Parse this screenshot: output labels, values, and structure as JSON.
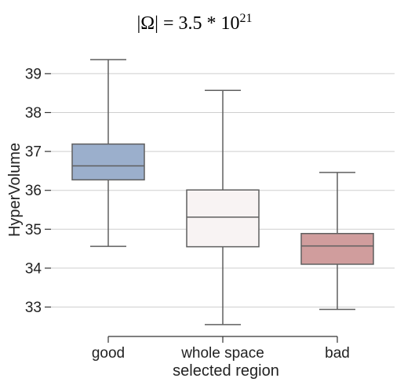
{
  "chart_data": {
    "type": "box",
    "title": "|Ω| = 3.5 * 10",
    "title_exponent": "21",
    "xlabel": "selected region",
    "ylabel": "HyperVolume",
    "ylim": [
      32.5,
      39.6
    ],
    "yticks": [
      33,
      34,
      35,
      36,
      37,
      38,
      39
    ],
    "grid": "horizontal",
    "categories": [
      "good",
      "whole space",
      "bad"
    ],
    "series": [
      {
        "category": "good",
        "whisker_low": 34.56,
        "q1": 36.27,
        "median": 36.63,
        "q3": 37.19,
        "whisker_high": 39.36,
        "color": "#9bafcc"
      },
      {
        "category": "whole space",
        "whisker_low": 32.55,
        "q1": 34.55,
        "median": 35.31,
        "q3": 36.01,
        "whisker_high": 38.57,
        "color": "#f8f3f3"
      },
      {
        "category": "bad",
        "whisker_low": 32.94,
        "q1": 34.1,
        "median": 34.57,
        "q3": 34.89,
        "whisker_high": 36.46,
        "color": "#d09d9d"
      }
    ]
  }
}
